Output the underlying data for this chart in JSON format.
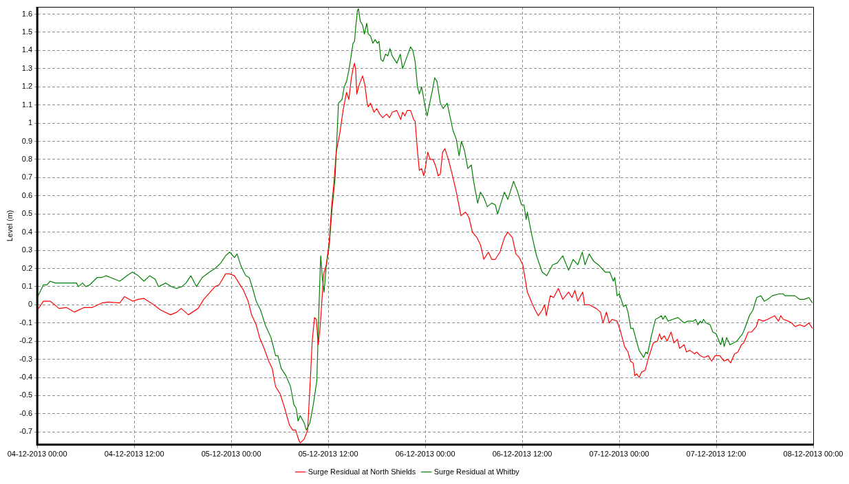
{
  "chart_data": {
    "type": "line",
    "ylabel": "Level (m)",
    "xlim": [
      "2013-12-04T00:00",
      "2013-12-08T00:00"
    ],
    "xticks": [
      {
        "value": "2013-12-04T00:00",
        "label": "04-12-2013 00:00"
      },
      {
        "value": "2013-12-04T12:00",
        "label": "04-12-2013 12:00"
      },
      {
        "value": "2013-12-05T00:00",
        "label": "05-12-2013 00:00"
      },
      {
        "value": "2013-12-05T12:00",
        "label": "05-12-2013 12:00"
      },
      {
        "value": "2013-12-06T00:00",
        "label": "06-12-2013 00:00"
      },
      {
        "value": "2013-12-06T12:00",
        "label": "06-12-2013 12:00"
      },
      {
        "value": "2013-12-07T00:00",
        "label": "07-12-2013 00:00"
      },
      {
        "value": "2013-12-07T12:00",
        "label": "07-12-2013 12:00"
      },
      {
        "value": "2013-12-08T00:00",
        "label": "08-12-2013 00:00"
      }
    ],
    "ylim": [
      -0.77,
      1.64
    ],
    "yticks": [
      -0.7,
      -0.6,
      -0.5,
      -0.4,
      -0.3,
      -0.2,
      -0.1,
      0,
      0.1,
      0.2,
      0.3,
      0.4,
      0.5,
      0.6,
      0.7,
      0.8,
      0.9,
      1,
      1.1,
      1.2,
      1.3,
      1.4,
      1.5,
      1.6
    ],
    "grid": true,
    "legend": "bottom",
    "marker": "none",
    "line_style": "solid",
    "series": [
      {
        "name": "Surge Residual at North Shields",
        "color": "#ff0000",
        "x": [
          "2013-12-04T00:00",
          "2013-12-04T00:46",
          "2013-12-04T01:36",
          "2013-12-04T02:42",
          "2013-12-04T03:36",
          "2013-12-04T04:36",
          "2013-12-04T05:48",
          "2013-12-04T06:48",
          "2013-12-04T08:00",
          "2013-12-04T08:48",
          "2013-12-04T10:12",
          "2013-12-04T10:48",
          "2013-12-04T11:48",
          "2013-12-04T12:30",
          "2013-12-04T13:12",
          "2013-12-04T14:24",
          "2013-12-04T15:18",
          "2013-12-04T16:30",
          "2013-12-04T17:18",
          "2013-12-04T17:48",
          "2013-12-04T18:42",
          "2013-12-04T19:54",
          "2013-12-04T20:36",
          "2013-12-04T22:00",
          "2013-12-04T22:30",
          "2013-12-04T23:18",
          "2013-12-04T23:48",
          "2013-12-05T00:24",
          "2013-12-05T00:57",
          "2013-12-05T01:31",
          "2013-12-05T02:05",
          "2013-12-05T02:31",
          "2013-12-05T03:05",
          "2013-12-05T03:30",
          "2013-12-05T04:04",
          "2013-12-05T04:38",
          "2013-12-05T05:04",
          "2013-12-05T05:29",
          "2013-12-05T06:03",
          "2013-12-05T06:37",
          "2013-12-05T07:11",
          "2013-12-05T07:36",
          "2013-12-05T07:58",
          "2013-12-05T08:19",
          "2013-12-05T08:32",
          "2013-12-05T09:01",
          "2013-12-05T09:27",
          "2013-12-05T09:47",
          "2013-12-05T10:01",
          "2013-12-05T10:18",
          "2013-12-05T10:31",
          "2013-12-05T10:46",
          "2013-12-05T11:00",
          "2013-12-05T11:26",
          "2013-12-05T11:46",
          "2013-12-05T12:08",
          "2013-12-05T12:25",
          "2013-12-05T12:42",
          "2013-12-05T12:59",
          "2013-12-05T13:25",
          "2013-12-05T13:50",
          "2013-12-05T14:16",
          "2013-12-05T14:33",
          "2013-12-05T14:50",
          "2013-12-05T15:04",
          "2013-12-05T15:15",
          "2013-12-05T15:24",
          "2013-12-05T15:32",
          "2013-12-05T15:49",
          "2013-12-05T16:15",
          "2013-12-05T16:32",
          "2013-12-05T16:49",
          "2013-12-05T16:57",
          "2013-12-05T17:14",
          "2013-12-05T17:40",
          "2013-12-05T18:00",
          "2013-12-05T18:22",
          "2013-12-05T18:44",
          "2013-12-05T19:13",
          "2013-12-05T19:35",
          "2013-12-05T19:55",
          "2013-12-05T20:29",
          "2013-12-05T20:58",
          "2013-12-05T21:12",
          "2013-12-05T21:29",
          "2013-12-05T21:46",
          "2013-12-05T22:11",
          "2013-12-05T22:34",
          "2013-12-05T22:45",
          "2013-12-05T23:02",
          "2013-12-05T23:16",
          "2013-12-05T23:33",
          "2013-12-05T23:49",
          "2013-12-06T00:02",
          "2013-12-06T00:19",
          "2013-12-06T00:36",
          "2013-12-06T00:58",
          "2013-12-06T01:19",
          "2013-12-06T01:36",
          "2013-12-06T01:52",
          "2013-12-06T02:09",
          "2013-12-06T02:26",
          "2013-12-06T02:43",
          "2013-12-06T02:52",
          "2013-12-06T03:26",
          "2013-12-06T03:51",
          "2013-12-06T04:25",
          "2013-12-06T04:59",
          "2013-12-06T05:25",
          "2013-12-06T05:50",
          "2013-12-06T06:24",
          "2013-12-06T06:50",
          "2013-12-06T07:15",
          "2013-12-06T07:49",
          "2013-12-06T08:14",
          "2013-12-06T08:40",
          "2013-12-06T09:14",
          "2013-12-06T09:48",
          "2013-12-06T10:13",
          "2013-12-06T10:47",
          "2013-12-06T11:13",
          "2013-12-06T11:38",
          "2013-12-06T12:04",
          "2013-12-06T12:38",
          "2013-12-06T13:12",
          "2013-12-06T13:37",
          "2013-12-06T13:59",
          "2013-12-06T14:28",
          "2013-12-06T14:46",
          "2013-12-06T14:59",
          "2013-12-06T15:28",
          "2013-12-06T15:53",
          "2013-12-06T16:28",
          "2013-12-06T17:01",
          "2013-12-06T17:44",
          "2013-12-06T18:10",
          "2013-12-06T18:31",
          "2013-12-06T18:52",
          "2013-12-06T19:29",
          "2013-12-06T19:43",
          "2013-12-06T20:17",
          "2013-12-06T21:08",
          "2013-12-06T21:41",
          "2013-12-06T21:59",
          "2013-12-06T22:25",
          "2013-12-06T22:46",
          "2013-12-06T23:07",
          "2013-12-06T23:44",
          "2013-12-07T00:07",
          "2013-12-07T00:40",
          "2013-12-07T01:05",
          "2013-12-07T01:23",
          "2013-12-07T01:43",
          "2013-12-07T01:56",
          "2013-12-07T02:10",
          "2013-12-07T02:27",
          "2013-12-07T02:47",
          "2013-12-07T03:13",
          "2013-12-07T03:38",
          "2013-12-07T04:13",
          "2013-12-07T04:43",
          "2013-12-07T04:59",
          "2013-12-07T05:13",
          "2013-12-07T05:34",
          "2013-12-07T05:55",
          "2013-12-07T06:25",
          "2013-12-07T06:46",
          "2013-12-07T07:11",
          "2013-12-07T07:28",
          "2013-12-07T08:02",
          "2013-12-07T08:19",
          "2013-12-07T08:44",
          "2013-12-07T09:19",
          "2013-12-07T09:35",
          "2013-12-07T10:01",
          "2013-12-07T10:30",
          "2013-12-07T11:01",
          "2013-12-07T11:26",
          "2013-12-07T11:52",
          "2013-12-07T12:26",
          "2013-12-07T12:59",
          "2013-12-07T13:25",
          "2013-12-07T13:47",
          "2013-12-07T14:16",
          "2013-12-07T14:41",
          "2013-12-07T15:07",
          "2013-12-07T15:24",
          "2013-12-07T15:58",
          "2013-12-07T16:23",
          "2013-12-07T16:57",
          "2013-12-07T17:14",
          "2013-12-07T17:48",
          "2013-12-07T18:22",
          "2013-12-07T19:13",
          "2013-12-07T19:42",
          "2013-12-07T19:59",
          "2013-12-07T20:17",
          "2013-12-07T20:55",
          "2013-12-07T21:20",
          "2013-12-07T21:46",
          "2013-12-07T22:20",
          "2013-12-07T22:54",
          "2013-12-07T23:28",
          "2013-12-07T23:54"
        ],
        "values": [
          -0.03,
          0.02,
          0.02,
          -0.02,
          -0.015,
          -0.04,
          -0.015,
          -0.015,
          0.01,
          0.015,
          0.01,
          0.045,
          0.02,
          0.03,
          0.035,
          0.0,
          -0.03,
          -0.055,
          -0.04,
          -0.02,
          -0.055,
          -0.02,
          0.03,
          0.1,
          0.11,
          0.17,
          0.17,
          0.16,
          0.12,
          0.08,
          0.02,
          -0.055,
          -0.11,
          -0.18,
          -0.24,
          -0.31,
          -0.35,
          -0.45,
          -0.49,
          -0.57,
          -0.66,
          -0.69,
          -0.69,
          -0.74,
          -0.76,
          -0.74,
          -0.69,
          -0.41,
          -0.2,
          -0.07,
          -0.08,
          -0.22,
          -0.12,
          0.17,
          0.22,
          0.35,
          0.54,
          0.67,
          0.84,
          0.94,
          1.07,
          1.17,
          1.13,
          1.24,
          1.3,
          1.33,
          1.29,
          1.16,
          1.21,
          1.26,
          1.21,
          1.11,
          1.09,
          1.11,
          1.06,
          1.08,
          1.05,
          1.03,
          1.05,
          1.03,
          1.06,
          1.07,
          1.02,
          1.06,
          1.04,
          1.07,
          1.07,
          1.02,
          1.01,
          0.85,
          0.74,
          0.75,
          0.71,
          0.76,
          0.84,
          0.8,
          0.8,
          0.76,
          0.71,
          0.72,
          0.84,
          0.86,
          0.82,
          0.8,
          0.7,
          0.62,
          0.49,
          0.51,
          0.48,
          0.4,
          0.37,
          0.33,
          0.25,
          0.29,
          0.25,
          0.25,
          0.29,
          0.37,
          0.4,
          0.37,
          0.28,
          0.26,
          0.22,
          0.07,
          0.01,
          -0.03,
          -0.06,
          -0.03,
          0.0,
          -0.06,
          0.05,
          0.04,
          0.09,
          0.03,
          0.07,
          0.04,
          0.08,
          0.02,
          0.07,
          0.0,
          0.0,
          -0.02,
          -0.04,
          -0.1,
          -0.04,
          -0.1,
          -0.08,
          -0.09,
          -0.14,
          -0.23,
          -0.26,
          -0.31,
          -0.32,
          -0.39,
          -0.38,
          -0.4,
          -0.37,
          -0.36,
          -0.29,
          -0.21,
          -0.2,
          -0.16,
          -0.19,
          -0.17,
          -0.2,
          -0.15,
          -0.21,
          -0.19,
          -0.24,
          -0.22,
          -0.26,
          -0.25,
          -0.27,
          -0.26,
          -0.28,
          -0.29,
          -0.28,
          -0.31,
          -0.28,
          -0.28,
          -0.31,
          -0.3,
          -0.32,
          -0.27,
          -0.26,
          -0.22,
          -0.21,
          -0.15,
          -0.15,
          -0.12,
          -0.08,
          -0.09,
          -0.08,
          -0.06,
          -0.09,
          -0.06,
          -0.08,
          -0.09,
          -0.1,
          -0.12,
          -0.11,
          -0.12,
          -0.1,
          -0.13
        ]
      },
      {
        "name": "Surge Residual at Whitby",
        "color": "#008000",
        "x": [
          "2013-12-04T00:00",
          "2013-12-04T00:46",
          "2013-12-04T01:12",
          "2013-12-04T01:36",
          "2013-12-04T02:12",
          "2013-12-04T02:54",
          "2013-12-04T04:00",
          "2013-12-04T04:51",
          "2013-12-04T05:06",
          "2013-12-04T05:36",
          "2013-12-04T06:00",
          "2013-12-04T06:30",
          "2013-12-04T07:24",
          "2013-12-04T07:58",
          "2013-12-04T08:30",
          "2013-12-04T09:06",
          "2013-12-04T10:12",
          "2013-12-04T11:24",
          "2013-12-04T11:48",
          "2013-12-04T12:30",
          "2013-12-04T13:12",
          "2013-12-04T13:54",
          "2013-12-04T14:36",
          "2013-12-04T15:00",
          "2013-12-04T15:54",
          "2013-12-04T16:36",
          "2013-12-04T17:12",
          "2013-12-04T17:54",
          "2013-12-04T18:24",
          "2013-12-04T19:00",
          "2013-12-04T19:42",
          "2013-12-04T20:24",
          "2013-12-04T21:18",
          "2013-12-04T22:00",
          "2013-12-04T22:42",
          "2013-12-04T23:18",
          "2013-12-04T23:48",
          "2013-12-05T00:24",
          "2013-12-05T00:43",
          "2013-12-05T01:14",
          "2013-12-05T01:48",
          "2013-12-05T02:14",
          "2013-12-05T02:39",
          "2013-12-05T03:05",
          "2013-12-05T03:38",
          "2013-12-05T04:12",
          "2013-12-05T04:55",
          "2013-12-05T05:29",
          "2013-12-05T05:46",
          "2013-12-05T06:11",
          "2013-12-05T06:46",
          "2013-12-05T07:20",
          "2013-12-05T07:45",
          "2013-12-05T08:02",
          "2013-12-05T08:16",
          "2013-12-05T08:32",
          "2013-12-05T09:01",
          "2013-12-05T09:18",
          "2013-12-05T09:44",
          "2013-12-05T10:09",
          "2013-12-05T10:35",
          "2013-12-05T10:52",
          "2013-12-05T11:04",
          "2013-12-05T11:17",
          "2013-12-05T11:29",
          "2013-12-05T11:46",
          "2013-12-05T12:08",
          "2013-12-05T12:25",
          "2013-12-05T12:51",
          "2013-12-05T13:16",
          "2013-12-05T13:42",
          "2013-12-05T13:59",
          "2013-12-05T14:16",
          "2013-12-05T14:33",
          "2013-12-05T14:50",
          "2013-12-05T15:04",
          "2013-12-05T15:15",
          "2013-12-05T15:24",
          "2013-12-05T15:37",
          "2013-12-05T15:44",
          "2013-12-05T15:58",
          "2013-12-05T16:15",
          "2013-12-05T16:28",
          "2013-12-05T16:46",
          "2013-12-05T16:57",
          "2013-12-05T17:14",
          "2013-12-05T17:31",
          "2013-12-05T17:48",
          "2013-12-05T18:05",
          "2013-12-05T18:17",
          "2013-12-05T18:31",
          "2013-12-05T18:47",
          "2013-12-05T19:05",
          "2013-12-05T19:22",
          "2013-12-05T19:38",
          "2013-12-05T19:55",
          "2013-12-05T20:29",
          "2013-12-05T20:55",
          "2013-12-05T21:12",
          "2013-12-05T21:37",
          "2013-12-05T22:11",
          "2013-12-05T22:28",
          "2013-12-05T22:45",
          "2013-12-05T23:02",
          "2013-12-05T23:16",
          "2013-12-05T23:33",
          "2013-12-06T00:02",
          "2013-12-06T00:14",
          "2013-12-06T00:36",
          "2013-12-06T00:53",
          "2013-12-06T01:10",
          "2013-12-06T01:27",
          "2013-12-06T01:52",
          "2013-12-06T02:13",
          "2013-12-06T02:43",
          "2013-12-06T03:00",
          "2013-12-06T03:26",
          "2013-12-06T03:51",
          "2013-12-06T04:11",
          "2013-12-06T04:29",
          "2013-12-06T04:51",
          "2013-12-06T05:16",
          "2013-12-06T05:42",
          "2013-12-06T05:59",
          "2013-12-06T06:29",
          "2013-12-06T06:50",
          "2013-12-06T07:15",
          "2013-12-06T07:41",
          "2013-12-06T08:14",
          "2013-12-06T08:40",
          "2013-12-06T08:57",
          "2013-12-06T09:22",
          "2013-12-06T09:48",
          "2013-12-06T10:13",
          "2013-12-06T10:56",
          "2013-12-06T11:22",
          "2013-12-06T11:55",
          "2013-12-06T12:13",
          "2013-12-06T12:29",
          "2013-12-06T12:38",
          "2013-12-06T13:12",
          "2013-12-06T13:46",
          "2013-12-06T14:28",
          "2013-12-06T15:02",
          "2013-12-06T15:45",
          "2013-12-06T16:19",
          "2013-12-06T17:01",
          "2013-12-06T17:44",
          "2013-12-06T18:18",
          "2013-12-06T18:52",
          "2013-12-06T19:26",
          "2013-12-06T19:46",
          "2013-12-06T20:17",
          "2013-12-06T20:50",
          "2013-12-06T21:25",
          "2013-12-06T22:16",
          "2013-12-06T22:50",
          "2013-12-06T23:16",
          "2013-12-06T23:27",
          "2013-12-06T23:44",
          "2013-12-07T00:01",
          "2013-12-07T00:32",
          "2013-12-07T00:49",
          "2013-12-07T01:05",
          "2013-12-07T01:26",
          "2013-12-07T01:43",
          "2013-12-07T02:05",
          "2013-12-07T02:27",
          "2013-12-07T03:01",
          "2013-12-07T03:18",
          "2013-12-07T03:31",
          "2013-12-07T03:56",
          "2013-12-07T04:29",
          "2013-12-07T04:55",
          "2013-12-07T05:13",
          "2013-12-07T05:24",
          "2013-12-07T05:41",
          "2013-12-07T06:03",
          "2013-12-07T06:37",
          "2013-12-07T07:16",
          "2013-12-07T08:02",
          "2013-12-07T08:28",
          "2013-12-07T09:10",
          "2013-12-07T09:27",
          "2013-12-07T09:44",
          "2013-12-07T10:01",
          "2013-12-07T10:13",
          "2013-12-07T10:26",
          "2013-12-07T10:44",
          "2013-12-07T11:14",
          "2013-12-07T11:35",
          "2013-12-07T12:00",
          "2013-12-07T12:26",
          "2013-12-07T12:34",
          "2013-12-07T12:46",
          "2013-12-07T12:59",
          "2013-12-07T13:17",
          "2013-12-07T13:42",
          "2013-12-07T14:33",
          "2013-12-07T15:15",
          "2013-12-07T15:32",
          "2013-12-07T16:06",
          "2013-12-07T16:32",
          "2013-12-07T17:01",
          "2013-12-07T17:31",
          "2013-12-07T17:57",
          "2013-12-07T18:22",
          "2013-12-07T18:56",
          "2013-12-07T19:47",
          "2013-12-07T20:17",
          "2013-12-07T20:30",
          "2013-12-07T21:12",
          "2013-12-07T21:43",
          "2013-12-07T22:20",
          "2013-12-07T22:54",
          "2013-12-07T23:28",
          "2013-12-07T23:54"
        ],
        "values": [
          0.04,
          0.11,
          0.11,
          0.13,
          0.12,
          0.12,
          0.12,
          0.12,
          0.1,
          0.12,
          0.1,
          0.11,
          0.15,
          0.15,
          0.16,
          0.15,
          0.13,
          0.17,
          0.18,
          0.16,
          0.13,
          0.16,
          0.14,
          0.1,
          0.12,
          0.1,
          0.09,
          0.1,
          0.12,
          0.16,
          0.1,
          0.15,
          0.18,
          0.2,
          0.23,
          0.27,
          0.29,
          0.26,
          0.28,
          0.21,
          0.16,
          0.15,
          0.09,
          0.02,
          -0.03,
          -0.11,
          -0.18,
          -0.28,
          -0.28,
          -0.35,
          -0.39,
          -0.45,
          -0.55,
          -0.57,
          -0.64,
          -0.61,
          -0.65,
          -0.69,
          -0.65,
          -0.55,
          -0.42,
          0.01,
          0.27,
          0.14,
          0.07,
          0.22,
          0.33,
          0.5,
          0.7,
          1.11,
          1.13,
          1.2,
          1.23,
          1.29,
          1.37,
          1.44,
          1.45,
          1.53,
          1.62,
          1.63,
          1.56,
          1.54,
          1.49,
          1.55,
          1.49,
          1.48,
          1.44,
          1.46,
          1.44,
          1.45,
          1.35,
          1.34,
          1.38,
          1.37,
          1.41,
          1.37,
          1.33,
          1.38,
          1.3,
          1.35,
          1.42,
          1.4,
          1.34,
          1.2,
          1.16,
          1.2,
          1.08,
          1.04,
          1.12,
          1.18,
          1.25,
          1.23,
          1.11,
          1.08,
          1.11,
          1.05,
          0.96,
          0.91,
          0.82,
          0.9,
          0.85,
          0.75,
          0.77,
          0.68,
          0.56,
          0.62,
          0.59,
          0.54,
          0.56,
          0.55,
          0.5,
          0.56,
          0.62,
          0.58,
          0.68,
          0.63,
          0.55,
          0.55,
          0.47,
          0.51,
          0.38,
          0.27,
          0.18,
          0.16,
          0.22,
          0.23,
          0.27,
          0.19,
          0.25,
          0.22,
          0.29,
          0.22,
          0.28,
          0.24,
          0.22,
          0.18,
          0.18,
          0.13,
          0.15,
          0.05,
          0.06,
          -0.01,
          0.0,
          -0.04,
          -0.13,
          -0.13,
          -0.19,
          -0.25,
          -0.29,
          -0.26,
          -0.27,
          -0.18,
          -0.08,
          -0.07,
          -0.06,
          -0.08,
          -0.06,
          -0.09,
          -0.08,
          -0.07,
          -0.1,
          -0.09,
          -0.09,
          -0.08,
          -0.11,
          -0.09,
          -0.1,
          -0.08,
          -0.1,
          -0.11,
          -0.15,
          -0.16,
          -0.21,
          -0.22,
          -0.18,
          -0.23,
          -0.18,
          -0.22,
          -0.2,
          -0.16,
          -0.13,
          -0.06,
          -0.03,
          0.04,
          0.05,
          0.02,
          0.03,
          0.05,
          0.06,
          0.06,
          0.05,
          0.05,
          0.05,
          0.03,
          0.03,
          0.04,
          0.01
        ]
      }
    ]
  }
}
